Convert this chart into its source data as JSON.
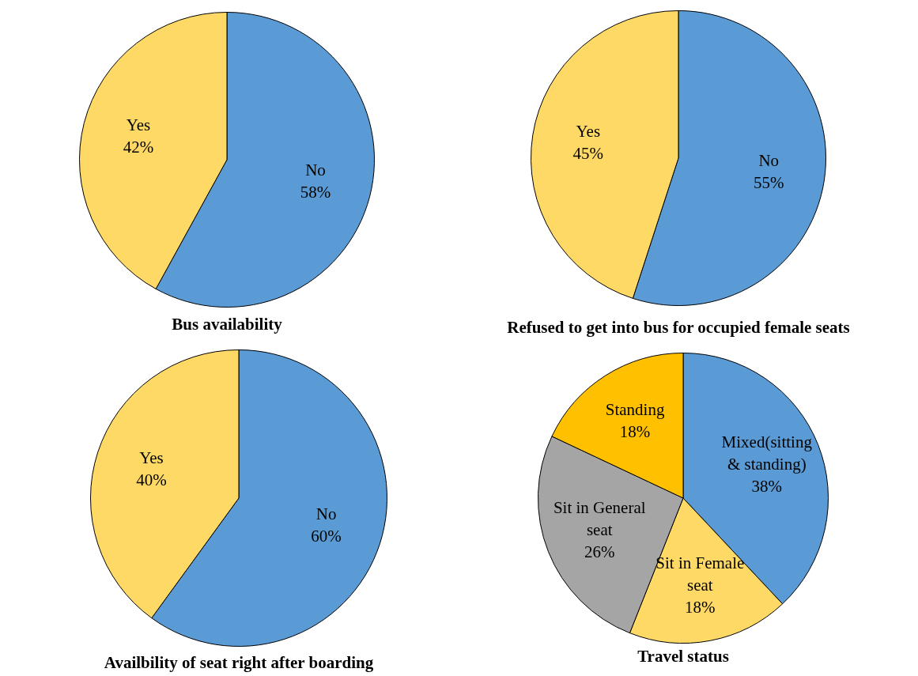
{
  "chart_data": [
    {
      "type": "pie",
      "title": "Bus availability",
      "categories": [
        "No",
        "Yes"
      ],
      "values": [
        58,
        42
      ],
      "value_labels": [
        "58%",
        "42%"
      ],
      "colors": [
        "#5b9bd5",
        "#ffd966"
      ],
      "legend": false
    },
    {
      "type": "pie",
      "title": "Refused to get into bus for occupied female seats",
      "categories": [
        "No",
        "Yes"
      ],
      "values": [
        55,
        45
      ],
      "value_labels": [
        "55%",
        "45%"
      ],
      "colors": [
        "#5b9bd5",
        "#ffd966"
      ],
      "legend": false
    },
    {
      "type": "pie",
      "title": "Availbility of seat right after boarding",
      "categories": [
        "No",
        "Yes"
      ],
      "values": [
        60,
        40
      ],
      "value_labels": [
        "60%",
        "40%"
      ],
      "colors": [
        "#5b9bd5",
        "#ffd966"
      ],
      "legend": false
    },
    {
      "type": "pie",
      "title": "Travel status",
      "categories": [
        "Mixed(sitting & standing)",
        "Sit in Female seat",
        "Sit in General seat",
        "Standing"
      ],
      "values": [
        38,
        18,
        26,
        18
      ],
      "value_labels": [
        "38%",
        "18%",
        "26%",
        "18%"
      ],
      "colors": [
        "#5b9bd5",
        "#ffd966",
        "#a5a5a5",
        "#ffc000"
      ],
      "legend": false
    }
  ]
}
